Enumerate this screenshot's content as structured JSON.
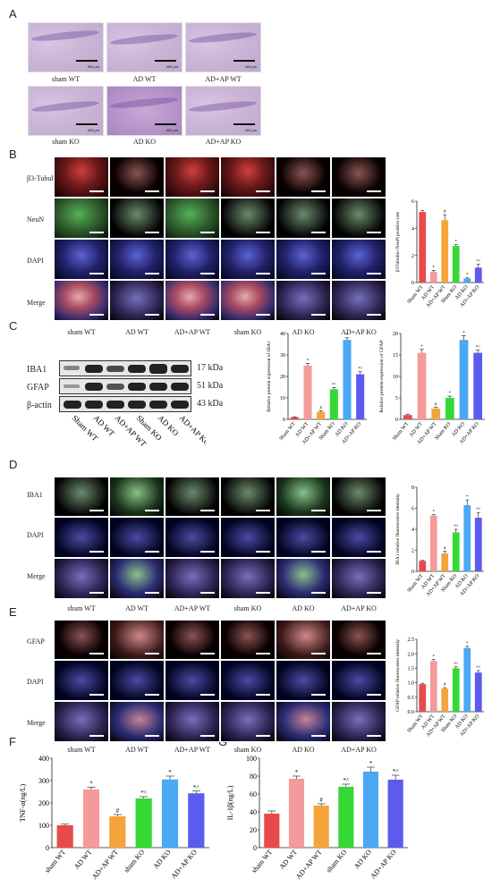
{
  "figure": {
    "panel_letters": [
      "A",
      "B",
      "C",
      "D",
      "E",
      "F",
      "G"
    ],
    "panelA": {
      "captions_row1": [
        "sham WT",
        "AD WT",
        "AD+AP WT"
      ],
      "captions_row2": [
        "sham KO",
        "AD KO",
        "AD+AP KO"
      ],
      "scale_text": "400 μm"
    },
    "panelB": {
      "row_labels": [
        "β3-Tubulin",
        "NeuN",
        "DAPI",
        "Merge"
      ],
      "column_captions": [
        "sham WT",
        "AD WT",
        "AD+AP WT",
        "sham KO",
        "AD KO",
        "AD+AP KO"
      ]
    },
    "panelC": {
      "blot_labels": [
        "IBA1",
        "GFAP",
        "β-actin"
      ],
      "kda_labels": [
        "17 kDa",
        "51 kDa",
        "43 kDa"
      ],
      "lane_labels": [
        "Sham WT",
        "AD WT",
        "AD+AP WT",
        "Sham KO",
        "AD KO",
        "AD+AP KO"
      ]
    },
    "panelD": {
      "row_labels": [
        "IBA1",
        "DAPI",
        "Merge"
      ],
      "column_captions": [
        "sham WT",
        "AD WT",
        "AD+AP WT",
        "sham KO",
        "AD KO",
        "AD+AP KO"
      ]
    },
    "panelE": {
      "row_labels": [
        "GFAP",
        "DAPI",
        "Merge"
      ],
      "column_captions": [
        "sham WT",
        "AD WT",
        "AD+AP WT",
        "sham KO",
        "AD KO",
        "AD+AP KO"
      ]
    }
  },
  "colors": [
    "#e84a4a",
    "#f59a9a",
    "#f5a43a",
    "#36d836",
    "#4aa8f5",
    "#5b5bf0"
  ],
  "chart_data": [
    {
      "id": "B",
      "type": "bar",
      "categories": [
        "Sham WT",
        "AD WT",
        "AD+AP WT",
        "Sham KO",
        "AD KO",
        "AD+AP KO"
      ],
      "values": [
        5.2,
        0.8,
        4.6,
        2.7,
        0.3,
        1.1
      ],
      "errors": [
        0.1,
        0.1,
        0.4,
        0.1,
        0.05,
        0.25
      ],
      "marks": [
        "",
        "*",
        "#",
        "*",
        "*",
        "*^"
      ],
      "ylabel": "β3Tubulin+NeuN positive rate",
      "ylim": [
        0,
        6
      ],
      "yticks": [
        "0",
        "2",
        "4",
        "6"
      ]
    },
    {
      "id": "C1",
      "type": "bar",
      "categories": [
        "Sham WT",
        "AD WT",
        "AD+AP WT",
        "Sham KO",
        "AD KO",
        "AD+AP KO"
      ],
      "values": [
        1,
        25,
        3.5,
        14,
        37,
        21
      ],
      "errors": [
        0.2,
        1.0,
        0.5,
        0.8,
        1.0,
        1.2
      ],
      "marks": [
        "",
        "*",
        "#",
        "*^",
        "*",
        "*^"
      ],
      "ylabel": "Relative protein expression of IBA1",
      "ylim": [
        0,
        40
      ],
      "yticks": [
        "0",
        "10",
        "20",
        "30",
        "40"
      ]
    },
    {
      "id": "C2",
      "type": "bar",
      "categories": [
        "Sham WT",
        "AD WT",
        "AD+AP WT",
        "Sham KO",
        "AD KO",
        "AD+AP KO"
      ],
      "values": [
        1,
        15.5,
        2.5,
        5,
        18.5,
        15.5
      ],
      "errors": [
        0.2,
        0.8,
        0.3,
        0.4,
        1.0,
        0.6
      ],
      "marks": [
        "",
        "*",
        "#",
        "*",
        "*",
        "*^"
      ],
      "ylabel": "Relative protein expression of GFAP",
      "ylim": [
        0,
        20
      ],
      "yticks": [
        "0",
        "5",
        "10",
        "15",
        "20"
      ]
    },
    {
      "id": "D",
      "type": "bar",
      "categories": [
        "Sham WT",
        "AD WT",
        "AD+AP WT",
        "Sham KO",
        "AD KO",
        "AD+AP KO"
      ],
      "values": [
        1,
        5.3,
        1.7,
        3.7,
        6.3,
        5.1
      ],
      "errors": [
        0.05,
        0.1,
        0.2,
        0.3,
        0.5,
        0.5
      ],
      "marks": [
        "",
        "*",
        "#",
        "*^",
        "*",
        "*^"
      ],
      "ylabel": "IBA1 relative fluorescence intensity",
      "ylim": [
        0,
        8
      ],
      "yticks": [
        "0",
        "2",
        "4",
        "6",
        "8"
      ]
    },
    {
      "id": "E",
      "type": "bar",
      "categories": [
        "Sham WT",
        "AD WT",
        "AD+AP WT",
        "Sham KO",
        "AD KO",
        "AD+AP KO"
      ],
      "values": [
        0.95,
        1.75,
        0.8,
        1.5,
        2.2,
        1.35
      ],
      "errors": [
        0.03,
        0.05,
        0.03,
        0.05,
        0.06,
        0.07
      ],
      "marks": [
        "",
        "*",
        "#",
        "*^",
        "*",
        "*^"
      ],
      "ylabel": "GFAP relative fluorescence intensity",
      "ylim": [
        0,
        2.5
      ],
      "yticks": [
        "0.0",
        "0.5",
        "1.0",
        "1.5",
        "2.0",
        "2.5"
      ]
    },
    {
      "id": "F",
      "type": "bar",
      "categories": [
        "sham WT",
        "AD WT",
        "AD+AP WT",
        "sham KO",
        "AD KO",
        "AD+AP KO"
      ],
      "values": [
        100,
        260,
        140,
        220,
        305,
        243
      ],
      "errors": [
        5,
        10,
        8,
        8,
        15,
        10
      ],
      "marks": [
        "",
        "*",
        "#",
        "*^",
        "*",
        "*^"
      ],
      "ylabel": "TNF-α(ng/L)",
      "ylim": [
        0,
        400
      ],
      "yticks": [
        "0",
        "100",
        "200",
        "300",
        "400"
      ]
    },
    {
      "id": "G",
      "type": "bar",
      "categories": [
        "sham WT",
        "AD WT",
        "AD+AP WT",
        "sham KO",
        "AD KO",
        "AD+AP KO"
      ],
      "values": [
        38,
        77,
        47,
        68,
        85,
        76
      ],
      "errors": [
        3,
        3,
        2,
        3,
        5,
        5
      ],
      "marks": [
        "",
        "*",
        "#",
        "*^",
        "*",
        "*^"
      ],
      "ylabel": "IL-1β(ng/L)",
      "ylim": [
        0,
        100
      ],
      "yticks": [
        "0",
        "20",
        "40",
        "60",
        "80",
        "100"
      ]
    }
  ]
}
